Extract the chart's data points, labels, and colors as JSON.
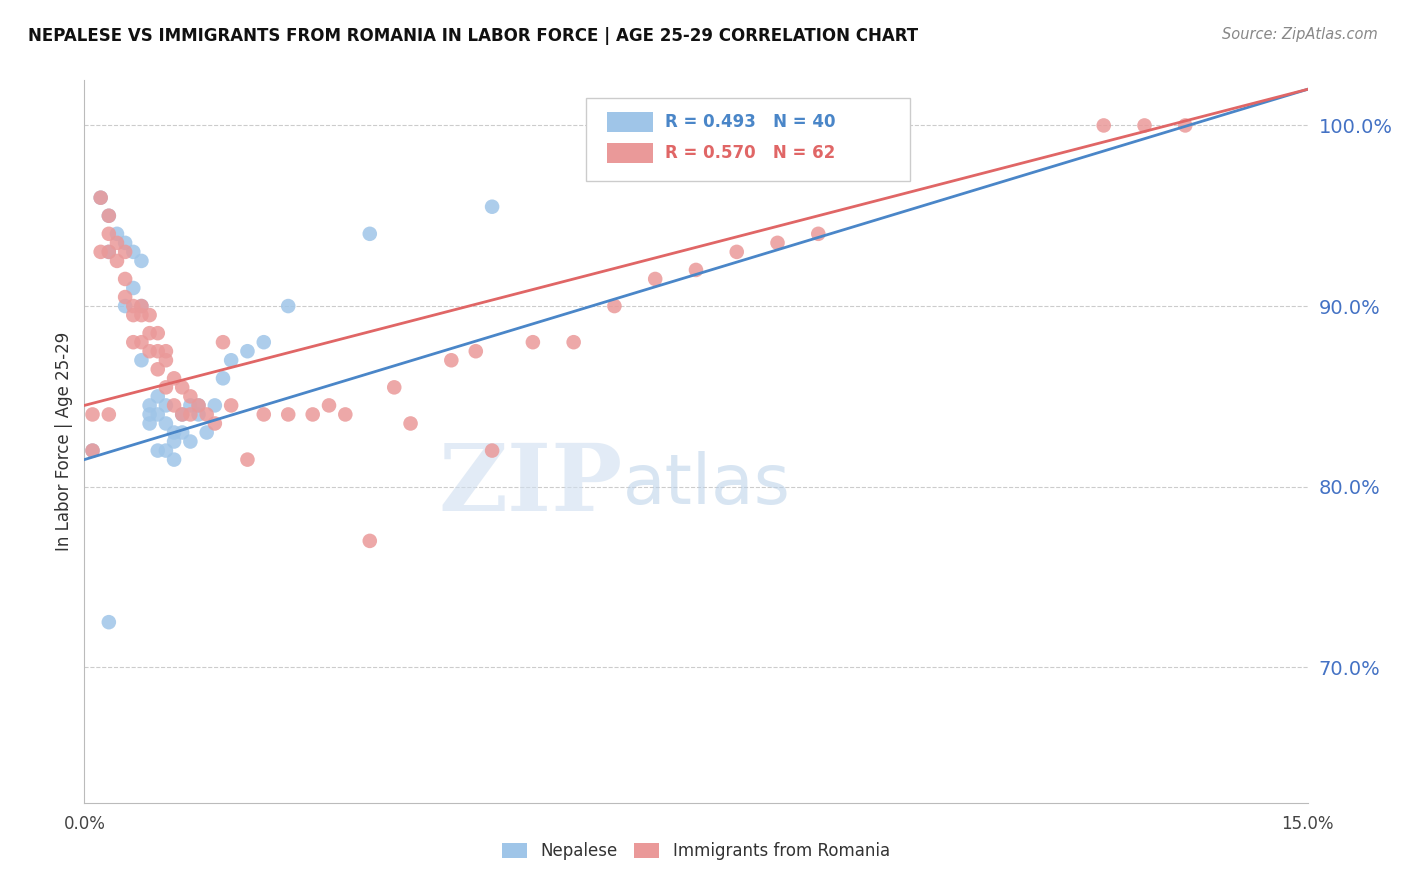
{
  "title": "NEPALESE VS IMMIGRANTS FROM ROMANIA IN LABOR FORCE | AGE 25-29 CORRELATION CHART",
  "source": "Source: ZipAtlas.com",
  "ylabel": "In Labor Force | Age 25-29",
  "xlim": [
    0.0,
    0.15
  ],
  "ylim": [
    0.625,
    1.025
  ],
  "yticks_right": [
    0.7,
    0.8,
    0.9,
    1.0
  ],
  "ytick_labels_right": [
    "70.0%",
    "80.0%",
    "90.0%",
    "100.0%"
  ],
  "legend_r1": "R = 0.493",
  "legend_n1": "N = 40",
  "legend_r2": "R = 0.570",
  "legend_n2": "N = 62",
  "color_blue": "#9fc5e8",
  "color_pink": "#ea9999",
  "color_blue_line": "#4a86c8",
  "color_pink_line": "#e06666",
  "color_axis_text": "#4472c4",
  "watermark_zip": "ZIP",
  "watermark_atlas": "atlas",
  "blue_line_x": [
    0.0,
    0.15
  ],
  "blue_line_y": [
    0.815,
    1.02
  ],
  "pink_line_x": [
    0.0,
    0.15
  ],
  "pink_line_y": [
    0.845,
    1.02
  ],
  "blue_x": [
    0.001,
    0.002,
    0.003,
    0.003,
    0.004,
    0.005,
    0.005,
    0.006,
    0.006,
    0.007,
    0.007,
    0.007,
    0.008,
    0.008,
    0.008,
    0.009,
    0.009,
    0.009,
    0.01,
    0.01,
    0.01,
    0.011,
    0.011,
    0.011,
    0.012,
    0.012,
    0.013,
    0.013,
    0.014,
    0.014,
    0.015,
    0.016,
    0.017,
    0.018,
    0.02,
    0.022,
    0.025,
    0.035,
    0.05,
    0.003
  ],
  "blue_y": [
    0.82,
    0.96,
    0.95,
    0.93,
    0.94,
    0.935,
    0.9,
    0.93,
    0.91,
    0.925,
    0.9,
    0.87,
    0.84,
    0.845,
    0.835,
    0.84,
    0.85,
    0.82,
    0.845,
    0.835,
    0.82,
    0.83,
    0.825,
    0.815,
    0.84,
    0.83,
    0.845,
    0.825,
    0.84,
    0.845,
    0.83,
    0.845,
    0.86,
    0.87,
    0.875,
    0.88,
    0.9,
    0.94,
    0.955,
    0.725
  ],
  "pink_x": [
    0.001,
    0.001,
    0.002,
    0.002,
    0.003,
    0.003,
    0.003,
    0.003,
    0.004,
    0.004,
    0.005,
    0.005,
    0.005,
    0.006,
    0.006,
    0.006,
    0.007,
    0.007,
    0.007,
    0.008,
    0.008,
    0.008,
    0.009,
    0.009,
    0.009,
    0.01,
    0.01,
    0.01,
    0.011,
    0.011,
    0.012,
    0.012,
    0.013,
    0.013,
    0.014,
    0.015,
    0.016,
    0.017,
    0.018,
    0.02,
    0.022,
    0.025,
    0.028,
    0.03,
    0.032,
    0.035,
    0.038,
    0.04,
    0.045,
    0.048,
    0.05,
    0.055,
    0.06,
    0.065,
    0.07,
    0.075,
    0.08,
    0.085,
    0.09,
    0.125,
    0.13,
    0.135
  ],
  "pink_y": [
    0.84,
    0.82,
    0.96,
    0.93,
    0.95,
    0.94,
    0.93,
    0.84,
    0.935,
    0.925,
    0.93,
    0.915,
    0.905,
    0.9,
    0.895,
    0.88,
    0.9,
    0.895,
    0.88,
    0.895,
    0.885,
    0.875,
    0.885,
    0.875,
    0.865,
    0.875,
    0.87,
    0.855,
    0.86,
    0.845,
    0.855,
    0.84,
    0.85,
    0.84,
    0.845,
    0.84,
    0.835,
    0.88,
    0.845,
    0.815,
    0.84,
    0.84,
    0.84,
    0.845,
    0.84,
    0.77,
    0.855,
    0.835,
    0.87,
    0.875,
    0.82,
    0.88,
    0.88,
    0.9,
    0.915,
    0.92,
    0.93,
    0.935,
    0.94,
    1.0,
    1.0,
    1.0
  ]
}
